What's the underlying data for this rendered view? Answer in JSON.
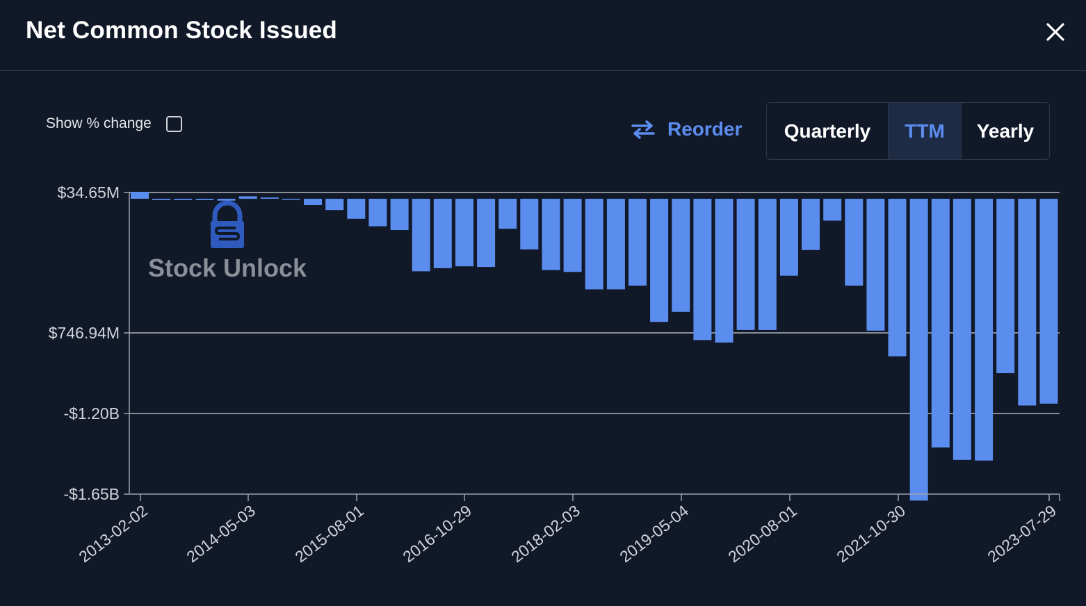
{
  "header": {
    "title": "Net Common Stock Issued"
  },
  "controls": {
    "show_change_label": "Show % change",
    "reorder_label": "Reorder",
    "periods": [
      "Quarterly",
      "TTM",
      "Yearly"
    ],
    "active_period": "TTM"
  },
  "watermark": {
    "text": "Stock Unlock"
  },
  "colors": {
    "bar": "#5b8def",
    "accent": "#5b8def",
    "background": "#111827"
  },
  "chart_data": {
    "type": "bar",
    "title": "Net Common Stock Issued",
    "xlabel": "",
    "ylabel": "",
    "y_tick_labels": [
      "$34.65M",
      "$746.94M",
      "-$1.20B",
      "-$1.65B"
    ],
    "x_tick_labels": [
      "2013-02-02",
      "2014-05-03",
      "2015-08-01",
      "2016-10-29",
      "2018-02-03",
      "2019-05-04",
      "2020-08-01",
      "2021-10-30",
      "2023-07-29"
    ],
    "ylim": [
      -1650000000,
      34650000
    ],
    "grid": true,
    "legend": "none",
    "values": [
      34.6,
      -6.2,
      -6.2,
      -6.2,
      -9.3,
      12.4,
      6.2,
      -3.1,
      -31.0,
      -55.8,
      -99.2,
      -136.4,
      -155.0,
      -359.6,
      -344.1,
      -334.8,
      -337.9,
      -148.8,
      -251.1,
      -353.4,
      -362.7,
      -449.5,
      -449.5,
      -430.9,
      -610.6,
      -561.0,
      -700.6,
      -713.0,
      -651.0,
      -651.0,
      -381.3,
      -254.2,
      -108.5,
      -430.9,
      -654.1,
      -781.2,
      -1496.4,
      -1233.0,
      -1295.0,
      -1298.1,
      -864.9,
      -1025.2,
      -1016.0
    ],
    "series": [
      {
        "values": []
      }
    ]
  }
}
